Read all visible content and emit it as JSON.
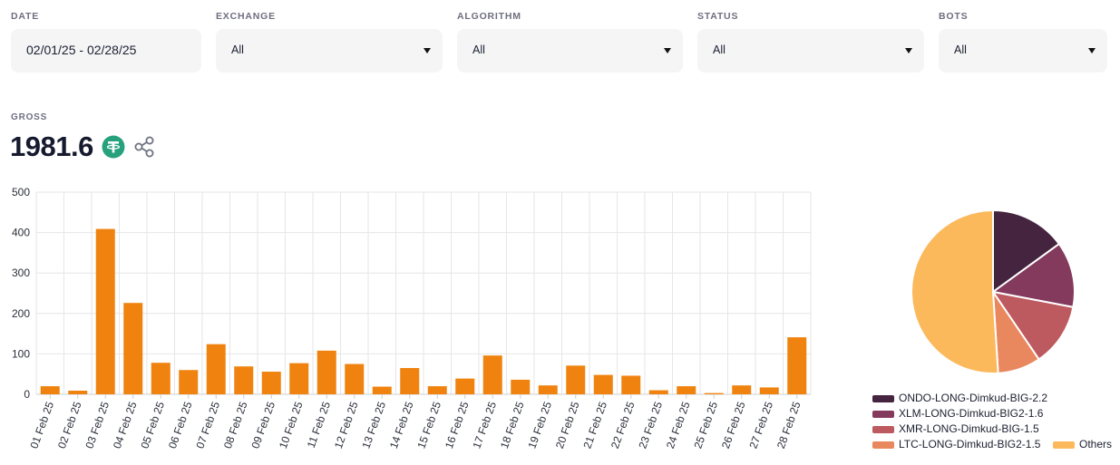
{
  "filters": {
    "date": {
      "label": "DATE",
      "value": "02/01/25 - 02/28/25"
    },
    "exchange": {
      "label": "EXCHANGE",
      "value": "All"
    },
    "algorithm": {
      "label": "ALGORITHM",
      "value": "All"
    },
    "status": {
      "label": "STATUS",
      "value": "All"
    },
    "bots": {
      "label": "BOTS",
      "value": "All"
    }
  },
  "gross": {
    "label": "GROSS",
    "value": "1981.6",
    "currency_icon": "tether-icon",
    "share_icon": "share-icon"
  },
  "colors": {
    "bar": "#f0830f",
    "currency_icon": "#26a17b",
    "grid": "#e6e6e6"
  },
  "chart_data": [
    {
      "type": "bar",
      "categories": [
        "01 Feb 25",
        "02 Feb 25",
        "03 Feb 25",
        "04 Feb 25",
        "05 Feb 25",
        "06 Feb 25",
        "07 Feb 25",
        "08 Feb 25",
        "09 Feb 25",
        "10 Feb 25",
        "11 Feb 25",
        "12 Feb 25",
        "13 Feb 25",
        "14 Feb 25",
        "15 Feb 25",
        "16 Feb 25",
        "17 Feb 25",
        "18 Feb 25",
        "19 Feb 25",
        "20 Feb 25",
        "21 Feb 25",
        "22 Feb 25",
        "23 Feb 25",
        "24 Feb 25",
        "25 Feb 25",
        "26 Feb 25",
        "27 Feb 25",
        "28 Feb 25"
      ],
      "values": [
        20,
        9,
        409,
        226,
        78,
        60,
        124,
        69,
        56,
        77,
        108,
        75,
        19,
        65,
        20,
        39,
        96,
        36,
        22,
        71,
        48,
        46,
        10,
        20,
        3,
        22,
        17,
        141
      ],
      "yticks": [
        0,
        100,
        200,
        300,
        400,
        500
      ],
      "ylim": [
        0,
        500
      ],
      "grid": true,
      "color": "#f0830f"
    },
    {
      "type": "pie",
      "labels": [
        "ONDO-LONG-Dimkud-BIG-2.2",
        "XLM-LONG-Dimkud-BIG2-1.6",
        "XMR-LONG-Dimkud-BIG-1.5",
        "LTC-LONG-Dimkud-BIG2-1.5",
        "Others"
      ],
      "values": [
        15,
        13,
        12.5,
        8.5,
        51
      ],
      "colors": [
        "#44243f",
        "#843a5c",
        "#bd5a60",
        "#e9875e",
        "#fbb95c"
      ],
      "legend_position": "bottom"
    }
  ]
}
